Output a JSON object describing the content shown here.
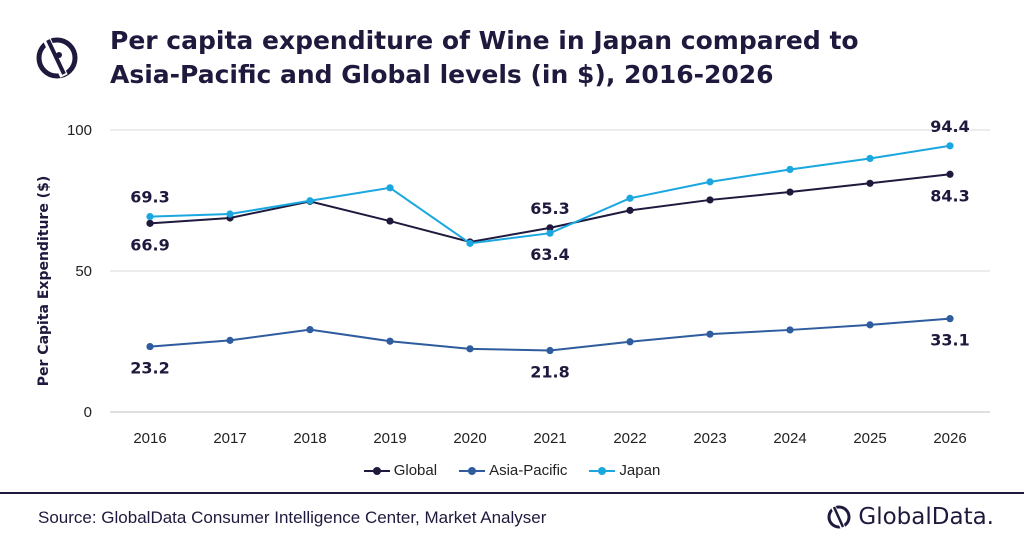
{
  "header": {
    "title": "Per capita expenditure of Wine in Japan compared to Asia-Pacific and Global levels (in $), 2016-2026"
  },
  "footer": {
    "source": "Source: GlobalData Consumer Intelligence Center, Market Analyser",
    "brand": "GlobalData."
  },
  "chart_data": {
    "type": "line",
    "title": "Per capita expenditure of Wine in Japan compared to Asia-Pacific and Global levels (in $), 2016-2026",
    "xlabel": "",
    "ylabel": "Per Capita Expenditure ($)",
    "ylim": [
      0,
      100
    ],
    "yticks": [
      0,
      50,
      100
    ],
    "grid": true,
    "legend": "bottom",
    "categories": [
      "2016",
      "2017",
      "2018",
      "2019",
      "2020",
      "2021",
      "2022",
      "2023",
      "2024",
      "2025",
      "2026"
    ],
    "series": [
      {
        "name": "Global",
        "color": "#1f1a3d",
        "values": [
          66.9,
          68.8,
          74.7,
          67.7,
          60.3,
          65.3,
          71.5,
          75.2,
          78.0,
          81.1,
          84.3
        ],
        "data_labels": [
          {
            "index": 0,
            "text": "66.9",
            "pos": "below"
          },
          {
            "index": 5,
            "text": "65.3",
            "pos": "above"
          },
          {
            "index": 10,
            "text": "84.3",
            "pos": "below"
          }
        ]
      },
      {
        "name": "Asia-Pacific",
        "color": "#2e5c9e",
        "values": [
          23.2,
          25.4,
          29.2,
          25.1,
          22.4,
          21.8,
          24.9,
          27.6,
          29.1,
          30.9,
          33.1
        ],
        "data_labels": [
          {
            "index": 0,
            "text": "23.2",
            "pos": "below"
          },
          {
            "index": 5,
            "text": "21.8",
            "pos": "below"
          },
          {
            "index": 10,
            "text": "33.1",
            "pos": "below"
          }
        ]
      },
      {
        "name": "Japan",
        "color": "#1aa7e0",
        "values": [
          69.3,
          70.2,
          74.9,
          79.5,
          59.8,
          63.4,
          75.8,
          81.6,
          86.0,
          89.9,
          94.4
        ],
        "data_labels": [
          {
            "index": 0,
            "text": "69.3",
            "pos": "above"
          },
          {
            "index": 5,
            "text": "63.4",
            "pos": "below"
          },
          {
            "index": 10,
            "text": "94.4",
            "pos": "above"
          }
        ]
      }
    ]
  }
}
